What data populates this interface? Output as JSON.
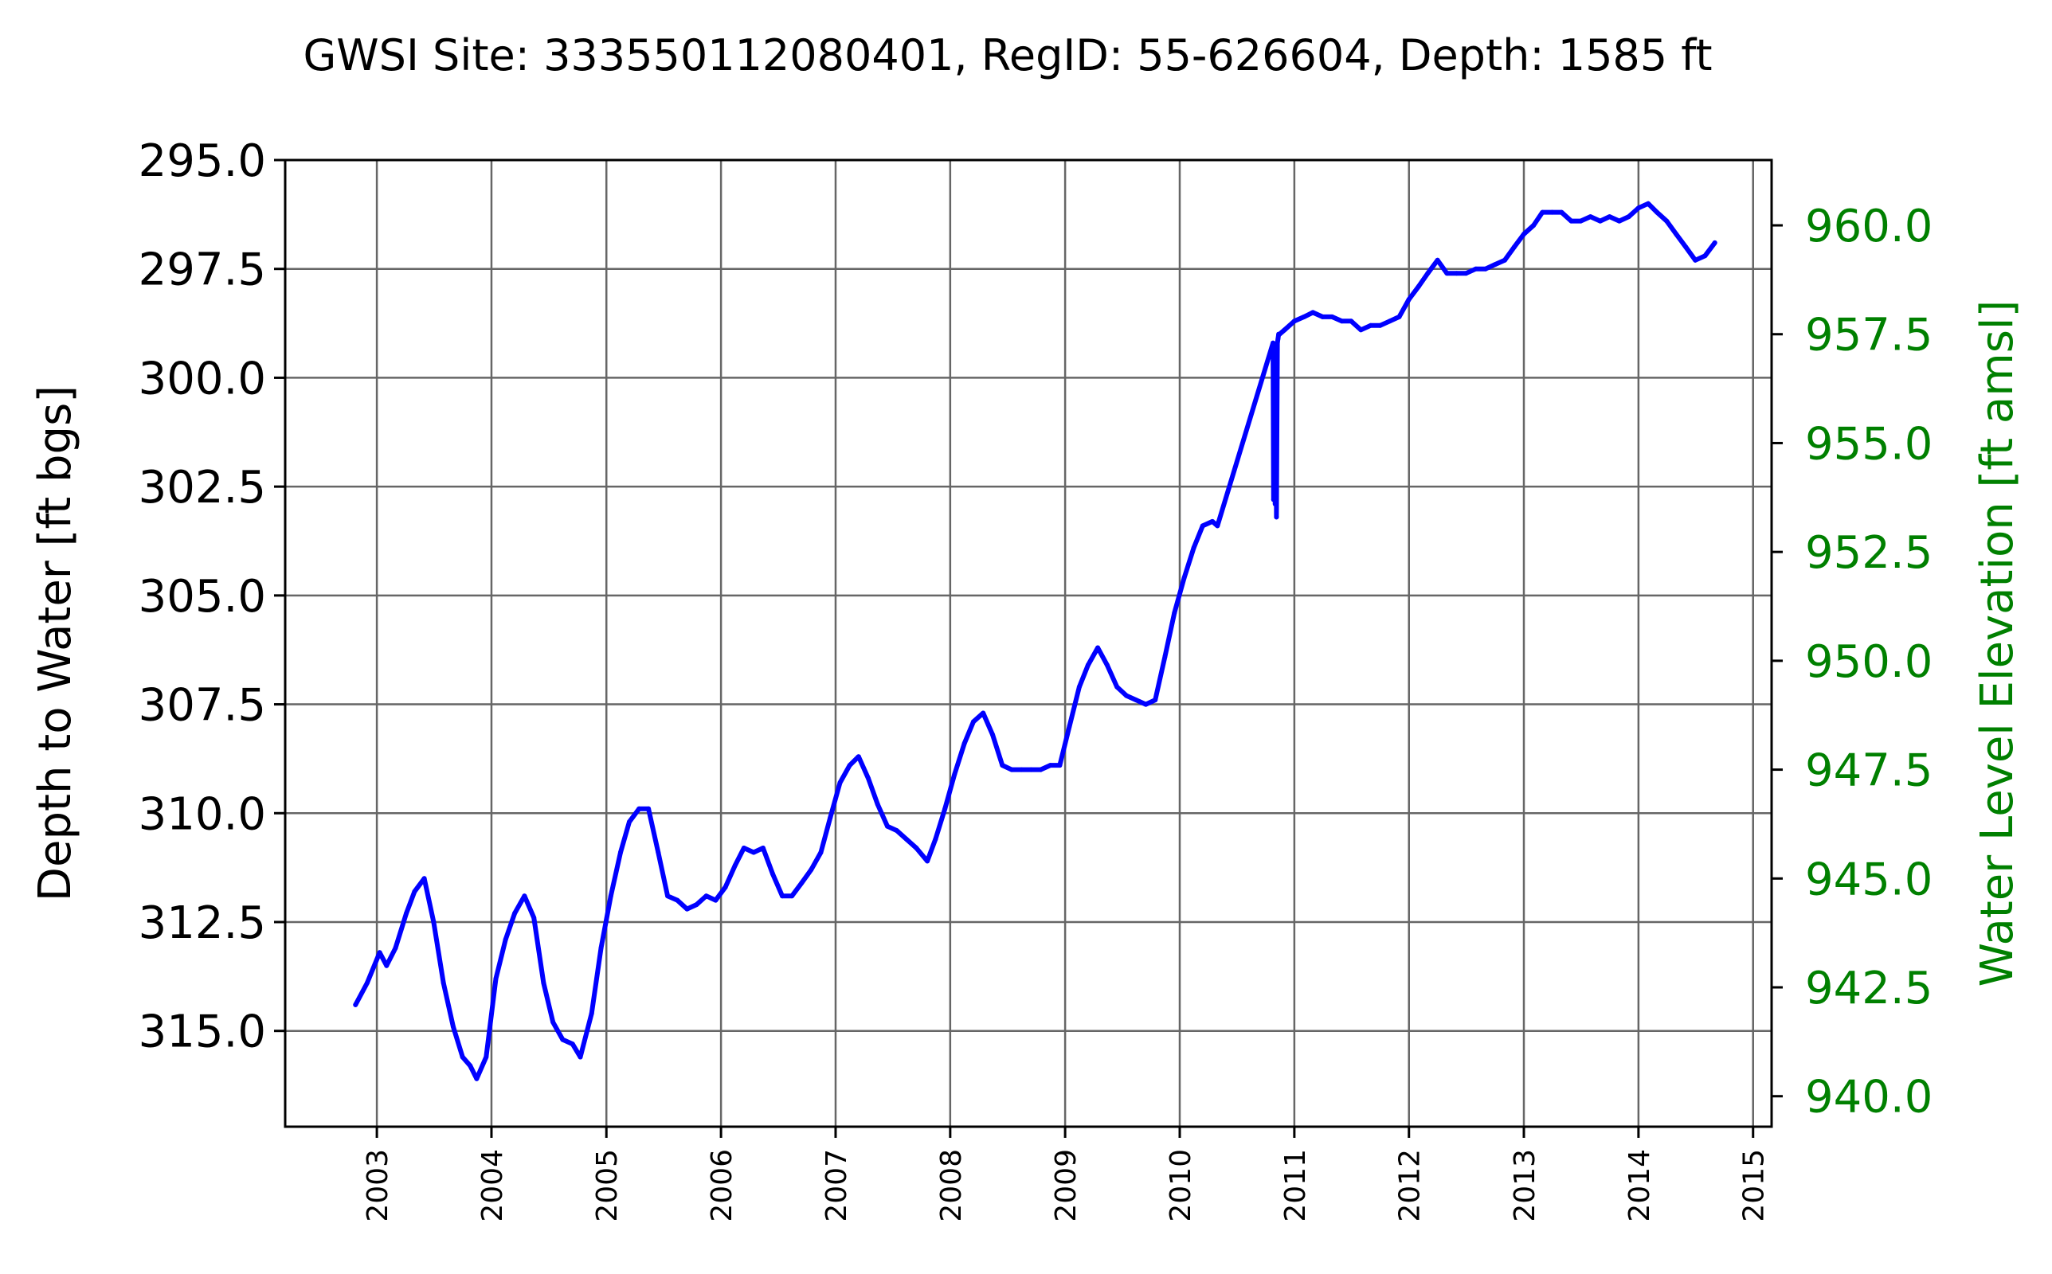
{
  "chart_data": {
    "type": "line",
    "title": "GWSI Site: 333550112080401, RegID: 55-626604, Depth: 1585 ft",
    "ylabel": "Depth to Water [ft bgs]",
    "ylabel_right": "Water Level Elevation [ft amsl]",
    "xlabel": "",
    "ylim": [
      317.2,
      295.0
    ],
    "y2lim": [
      939.3,
      961.5
    ],
    "xlim": [
      "2002-03-15",
      "2015-03-01"
    ],
    "y_ticks": [
      "295.0",
      "297.5",
      "300.0",
      "302.5",
      "305.0",
      "307.5",
      "310.0",
      "312.5",
      "315.0"
    ],
    "y_tick_values": [
      295.0,
      297.5,
      300.0,
      302.5,
      305.0,
      307.5,
      310.0,
      312.5,
      315.0
    ],
    "y2_ticks": [
      "940.0",
      "942.5",
      "945.0",
      "947.5",
      "950.0",
      "952.5",
      "955.0",
      "957.5",
      "960.0"
    ],
    "y2_tick_values": [
      940.0,
      942.5,
      945.0,
      947.5,
      950.0,
      952.5,
      955.0,
      957.5,
      960.0
    ],
    "x_ticks": [
      "2003",
      "2004",
      "2005",
      "2006",
      "2007",
      "2008",
      "2009",
      "2010",
      "2011",
      "2012",
      "2013",
      "2014",
      "2015"
    ],
    "x_tick_dates": [
      "2003-01-01",
      "2004-01-01",
      "2005-01-01",
      "2006-01-01",
      "2007-01-01",
      "2008-01-01",
      "2009-01-01",
      "2010-01-01",
      "2011-01-01",
      "2012-01-01",
      "2013-01-01",
      "2014-01-01",
      "2015-01-01"
    ],
    "grid": true,
    "y_inverted": true,
    "series": [
      {
        "color": "#0000ff",
        "x": [
          "2002-10-25",
          "2002-12-01",
          "2003-01-10",
          "2003-02-01",
          "2003-03-01",
          "2003-04-05",
          "2003-05-01",
          "2003-06-01",
          "2003-07-01",
          "2003-08-01",
          "2003-09-01",
          "2003-10-01",
          "2003-10-25",
          "2003-11-15",
          "2003-12-15",
          "2004-01-15",
          "2004-02-15",
          "2004-03-15",
          "2004-04-15",
          "2004-05-15",
          "2004-06-15",
          "2004-07-15",
          "2004-08-15",
          "2004-09-15",
          "2004-10-10",
          "2004-11-15",
          "2004-12-15",
          "2005-01-15",
          "2005-02-15",
          "2005-03-15",
          "2005-04-15",
          "2005-05-15",
          "2005-06-15",
          "2005-07-15",
          "2005-08-15",
          "2005-09-15",
          "2005-10-15",
          "2005-11-15",
          "2005-12-15",
          "2006-01-15",
          "2006-02-15",
          "2006-03-15",
          "2006-04-15",
          "2006-05-15",
          "2006-06-15",
          "2006-07-15",
          "2006-08-15",
          "2006-09-15",
          "2006-10-15",
          "2006-11-15",
          "2006-12-15",
          "2007-01-15",
          "2007-02-15",
          "2007-03-15",
          "2007-04-15",
          "2007-05-15",
          "2007-06-15",
          "2007-07-15",
          "2007-08-15",
          "2007-09-15",
          "2007-10-20",
          "2007-11-15",
          "2007-12-15",
          "2008-01-15",
          "2008-02-15",
          "2008-03-15",
          "2008-04-15",
          "2008-05-15",
          "2008-06-15",
          "2008-07-15",
          "2008-08-15",
          "2008-09-15",
          "2008-10-15",
          "2008-11-15",
          "2008-12-15",
          "2009-01-15",
          "2009-02-15",
          "2009-03-15",
          "2009-04-15",
          "2009-05-15",
          "2009-06-15",
          "2009-07-15",
          "2009-08-15",
          "2009-09-15",
          "2009-10-15",
          "2009-11-15",
          "2009-12-15",
          "2010-01-15",
          "2010-02-15",
          "2010-03-15",
          "2010-04-15",
          "2010-05-01",
          "2010-10-25",
          "2010-10-27",
          "2010-10-29",
          "2010-11-01",
          "2010-11-03",
          "2010-11-05",
          "2010-11-08",
          "2010-11-10",
          "2010-11-12",
          "2010-11-15",
          "2010-12-01",
          "2011-01-01",
          "2011-02-01",
          "2011-03-01",
          "2011-04-01",
          "2011-05-01",
          "2011-06-01",
          "2011-07-01",
          "2011-08-01",
          "2011-09-01",
          "2011-10-01",
          "2011-11-01",
          "2011-12-01",
          "2012-01-01",
          "2012-02-01",
          "2012-03-01",
          "2012-04-01",
          "2012-05-01",
          "2012-06-01",
          "2012-07-01",
          "2012-08-01",
          "2012-09-01",
          "2012-10-01",
          "2012-11-01",
          "2012-12-01",
          "2013-01-01",
          "2013-02-01",
          "2013-03-01",
          "2013-04-01",
          "2013-05-01",
          "2013-06-01",
          "2013-07-01",
          "2013-08-01",
          "2013-09-01",
          "2013-10-01",
          "2013-11-01",
          "2013-12-01",
          "2014-01-01",
          "2014-02-01",
          "2014-03-01",
          "2014-04-01",
          "2014-05-01",
          "2014-06-01",
          "2014-07-01",
          "2014-08-01",
          "2014-09-01"
        ],
        "values": [
          314.4,
          313.9,
          313.2,
          313.5,
          313.1,
          312.3,
          311.8,
          311.5,
          312.5,
          313.9,
          314.9,
          315.6,
          315.8,
          316.1,
          315.6,
          313.8,
          312.9,
          312.3,
          311.9,
          312.4,
          313.9,
          314.8,
          315.2,
          315.3,
          315.6,
          314.6,
          313.1,
          311.9,
          310.9,
          310.2,
          309.9,
          309.9,
          310.9,
          311.9,
          312.0,
          312.2,
          312.1,
          311.9,
          312.0,
          311.7,
          311.2,
          310.8,
          310.9,
          310.8,
          311.4,
          311.9,
          311.9,
          311.6,
          311.3,
          310.9,
          310.1,
          309.3,
          308.9,
          308.7,
          309.2,
          309.8,
          310.3,
          310.4,
          310.6,
          310.8,
          311.1,
          310.6,
          309.9,
          309.1,
          308.4,
          307.9,
          307.7,
          308.2,
          308.9,
          309.0,
          309.0,
          309.0,
          309.0,
          308.9,
          308.9,
          308.0,
          307.1,
          306.6,
          306.2,
          306.6,
          307.1,
          307.3,
          307.4,
          307.5,
          307.4,
          306.4,
          305.4,
          304.6,
          303.9,
          303.4,
          303.3,
          303.4,
          299.2,
          302.8,
          299.3,
          302.9,
          299.3,
          303.2,
          299.2,
          299.1,
          299.0,
          299.0,
          298.9,
          298.7,
          298.6,
          298.5,
          298.6,
          298.6,
          298.7,
          298.7,
          298.9,
          298.8,
          298.8,
          298.7,
          298.6,
          298.2,
          297.9,
          297.6,
          297.3,
          297.6,
          297.6,
          297.6,
          297.5,
          297.5,
          297.4,
          297.3,
          297.0,
          296.7,
          296.5,
          296.2,
          296.2,
          296.2,
          296.4,
          296.4,
          296.3,
          296.4,
          296.3,
          296.4,
          296.3,
          296.1,
          296.0,
          296.2,
          296.4,
          296.7,
          297.0,
          297.3,
          297.2,
          296.9
        ]
      }
    ]
  }
}
